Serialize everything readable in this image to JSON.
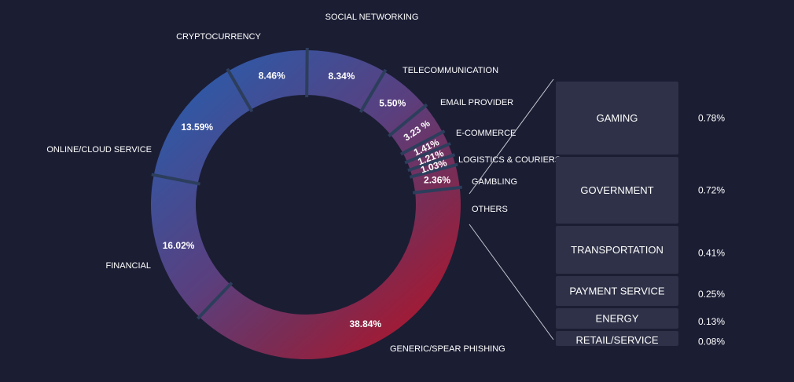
{
  "colors": {
    "background": "#1b1d33",
    "blue": "#2d5aa8",
    "purple": "#5a3f7e",
    "magenta": "#7a2c54",
    "red": "#b0142a",
    "separator": "#2c3e5c",
    "box_fill": "#2e3147",
    "connector": "#c8c8d0"
  },
  "chart_data": {
    "type": "pie",
    "variant": "donut",
    "slices": [
      {
        "label": "SOCIAL NETWORKING",
        "value": 8.34,
        "display": "8.34%"
      },
      {
        "label": "TELECOMMUNICATION",
        "value": 5.5,
        "display": "5.50%"
      },
      {
        "label": "EMAIL PROVIDER",
        "value": 3.23,
        "display": "3.23 %"
      },
      {
        "label": "E-COMMERCE",
        "value": 1.41,
        "display": "1.41%"
      },
      {
        "label": "LOGISTICS & COURIERS",
        "value": 1.21,
        "display": "1.21%"
      },
      {
        "label": "GAMBLING",
        "value": 1.03,
        "display": "1.03%"
      },
      {
        "label": "OTHERS",
        "value": 2.36,
        "display": "2.36%"
      },
      {
        "label": "GENERIC/SPEAR PHISHING",
        "value": 38.84,
        "display": "38.84%"
      },
      {
        "label": "FINANCIAL",
        "value": 16.02,
        "display": "16.02%"
      },
      {
        "label": "ONLINE/CLOUD SERVICE",
        "value": 13.59,
        "display": "13.59%"
      },
      {
        "label": "CRYPTOCURRENCY",
        "value": 8.46,
        "display": "8.46%"
      }
    ],
    "others_breakdown": [
      {
        "label": "GAMING",
        "value": 0.78,
        "display": "0.78%"
      },
      {
        "label": "GOVERNMENT",
        "value": 0.72,
        "display": "0.72%"
      },
      {
        "label": "TRANSPORTATION",
        "value": 0.41,
        "display": "0.41%"
      },
      {
        "label": "PAYMENT SERVICE",
        "value": 0.25,
        "display": "0.25%"
      },
      {
        "label": "ENERGY",
        "value": 0.13,
        "display": "0.13%"
      },
      {
        "label": "RETAIL/SERVICE",
        "value": 0.08,
        "display": "0.08%"
      }
    ]
  }
}
